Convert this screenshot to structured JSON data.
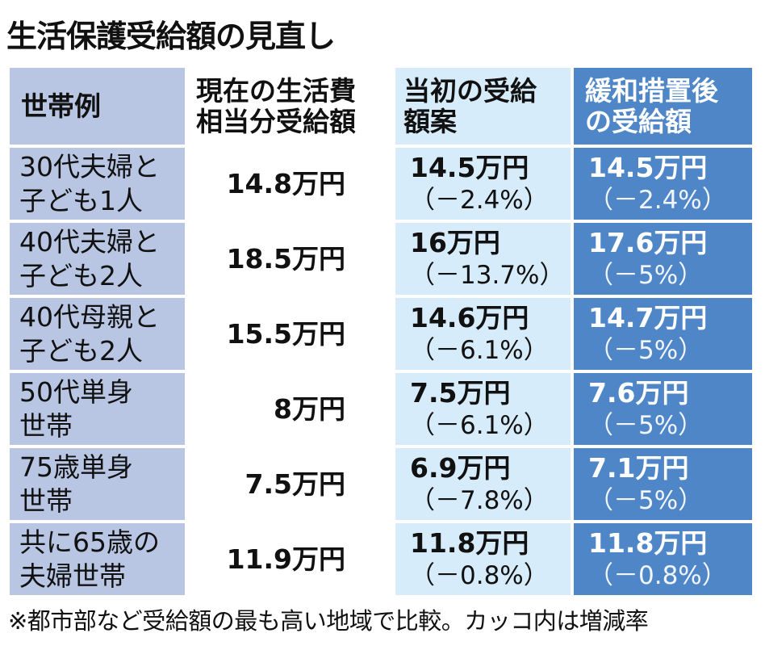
{
  "title": "生活保護受給額の見直し",
  "headers": {
    "household": "世帯例",
    "current_line1": "現在の生活費",
    "current_line2": "相当分受給額",
    "initial_line1": "当初の受給",
    "initial_line2": "額案",
    "relief_line1": "緩和措置後",
    "relief_line2": "の受給額"
  },
  "rows": [
    {
      "label_line1": "30代夫婦と",
      "label_line2": "子ども1人",
      "current": "14.8万円",
      "initial_amount": "14.5万円",
      "initial_change": "（－2.4%）",
      "relief_amount": "14.5万円",
      "relief_change": "（－2.4%）"
    },
    {
      "label_line1": "40代夫婦と",
      "label_line2": "子ども2人",
      "current": "18.5万円",
      "initial_amount": "16万円",
      "initial_change": "（－13.7%）",
      "relief_amount": "17.6万円",
      "relief_change": "（－5%）"
    },
    {
      "label_line1": "40代母親と",
      "label_line2": "子ども2人",
      "current": "15.5万円",
      "initial_amount": "14.6万円",
      "initial_change": "（－6.1%）",
      "relief_amount": "14.7万円",
      "relief_change": "（－5%）"
    },
    {
      "label_line1": "50代単身",
      "label_line2": "世帯",
      "current": "8万円",
      "initial_amount": "7.5万円",
      "initial_change": "（－6.1%）",
      "relief_amount": "7.6万円",
      "relief_change": "（－5%）"
    },
    {
      "label_line1": "75歳単身",
      "label_line2": "世帯",
      "current": "7.5万円",
      "initial_amount": "6.9万円",
      "initial_change": "（－7.8%）",
      "relief_amount": "7.1万円",
      "relief_change": "（－5%）"
    },
    {
      "label_line1": "共に65歳の",
      "label_line2": "夫婦世帯",
      "current": "11.9万円",
      "initial_amount": "11.8万円",
      "initial_change": "（－0.8%）",
      "relief_amount": "11.8万円",
      "relief_change": "（－0.8%）"
    }
  ],
  "note": "※都市部など受給額の最も高い地域で比較。カッコ内は増減率",
  "colors": {
    "label_column": "#b8c6e3",
    "initial_column": "#d7ecfa",
    "relief_column": "#4e86c8"
  }
}
